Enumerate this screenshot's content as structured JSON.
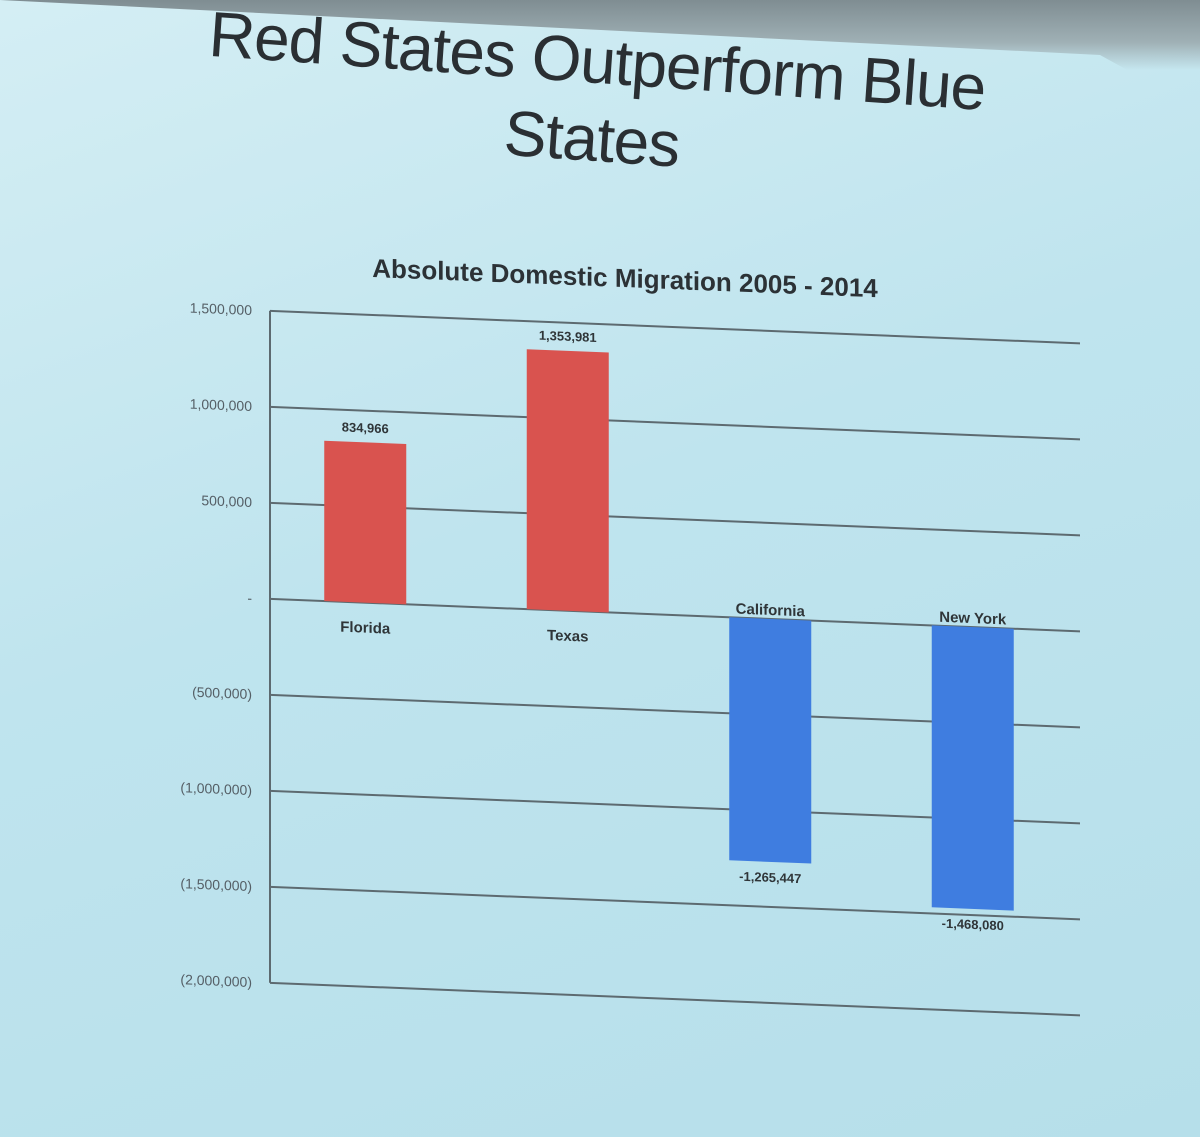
{
  "slide": {
    "title": "Red States Outperform Blue States"
  },
  "chart_data": {
    "type": "bar",
    "title": "Absolute Domestic Migration 2005 - 2014",
    "categories": [
      "Florida",
      "Texas",
      "California",
      "New York"
    ],
    "values": [
      834966,
      1353981,
      -1265447,
      -1468080
    ],
    "value_labels": [
      "834,966",
      "1,353,981",
      "-1,265,447",
      "-1,468,080"
    ],
    "bar_colors": [
      "#d9534f",
      "#d9534f",
      "#3f7de0",
      "#3f7de0"
    ],
    "ylim": [
      -2000000,
      1500000
    ],
    "yticks": [
      1500000,
      1000000,
      500000,
      0,
      -500000,
      -1000000,
      -1500000,
      -2000000
    ],
    "ytick_labels": [
      "1,500,000",
      "1,000,000",
      "500,000",
      "-",
      "(500,000)",
      "(1,000,000)",
      "(1,500,000)",
      "(2,000,000)"
    ],
    "grid": true,
    "legend": "none"
  }
}
